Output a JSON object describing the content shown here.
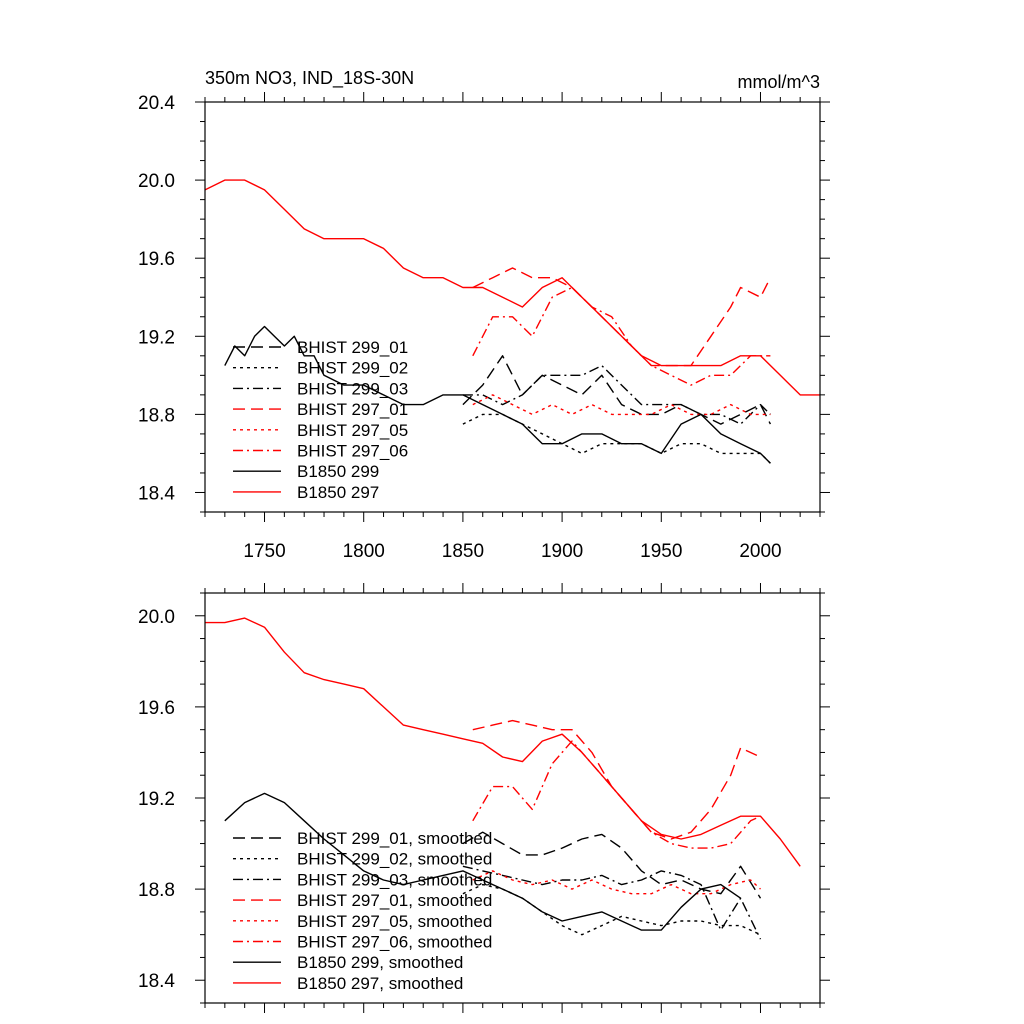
{
  "chart_data": [
    {
      "type": "line",
      "title": "350m NO3, IND_18S-30N",
      "units": "mmol/m^3",
      "xlim": [
        1720,
        2030
      ],
      "ylim": [
        18.3,
        20.4
      ],
      "yticks": [
        18.4,
        18.8,
        19.2,
        19.6,
        20.0,
        20.4
      ],
      "ytick_labels": [
        "18.4",
        "18.8",
        "19.2",
        "19.6",
        "20.0",
        "20.4"
      ],
      "xticks": [
        1750,
        1800,
        1850,
        1900,
        1950,
        2000
      ],
      "xtick_labels": [
        "1750",
        "1800",
        "1850",
        "1900",
        "1950",
        "2000"
      ],
      "legend_position": "left",
      "series": [
        {
          "name": "BHIST 299_01",
          "color": "#000000",
          "dash": "long-dash",
          "x": [
            1850,
            1860,
            1870,
            1880,
            1890,
            1900,
            1910,
            1920,
            1930,
            1940,
            1950,
            1960,
            1970,
            1980,
            1990,
            2000,
            2005
          ],
          "y": [
            18.85,
            18.95,
            19.1,
            18.9,
            19.0,
            18.95,
            18.9,
            19.0,
            18.85,
            18.8,
            18.8,
            18.85,
            18.8,
            18.75,
            18.8,
            18.85,
            18.75
          ]
        },
        {
          "name": "BHIST 299_02",
          "color": "#000000",
          "dash": "dotted",
          "x": [
            1850,
            1860,
            1870,
            1880,
            1890,
            1900,
            1910,
            1920,
            1930,
            1940,
            1950,
            1960,
            1970,
            1980,
            1990,
            2000,
            2005
          ],
          "y": [
            18.75,
            18.8,
            18.8,
            18.75,
            18.7,
            18.65,
            18.6,
            18.65,
            18.65,
            18.65,
            18.6,
            18.65,
            18.65,
            18.6,
            18.6,
            18.6,
            18.55
          ]
        },
        {
          "name": "BHIST 299_03",
          "color": "#000000",
          "dash": "dash-dot",
          "x": [
            1850,
            1860,
            1870,
            1880,
            1890,
            1900,
            1910,
            1920,
            1930,
            1940,
            1950,
            1960,
            1970,
            1980,
            1990,
            2000,
            2005
          ],
          "y": [
            18.9,
            18.9,
            18.85,
            18.9,
            19.0,
            19.0,
            19.0,
            19.05,
            18.95,
            18.85,
            18.85,
            18.85,
            18.8,
            18.8,
            18.75,
            18.85,
            18.8
          ]
        },
        {
          "name": "BHIST 297_01",
          "color": "#ff0000",
          "dash": "long-dash",
          "x": [
            1855,
            1865,
            1875,
            1885,
            1895,
            1905,
            1915,
            1925,
            1935,
            1945,
            1955,
            1965,
            1975,
            1985,
            1990,
            2000,
            2005
          ],
          "y": [
            19.45,
            19.5,
            19.55,
            19.5,
            19.5,
            19.45,
            19.35,
            19.25,
            19.15,
            19.05,
            19.05,
            19.05,
            19.2,
            19.35,
            19.45,
            19.4,
            19.5
          ]
        },
        {
          "name": "BHIST 297_05",
          "color": "#ff0000",
          "dash": "dotted",
          "x": [
            1855,
            1865,
            1875,
            1885,
            1895,
            1905,
            1915,
            1925,
            1935,
            1945,
            1955,
            1965,
            1975,
            1985,
            1995,
            2005
          ],
          "y": [
            18.85,
            18.9,
            18.85,
            18.8,
            18.85,
            18.8,
            18.85,
            18.8,
            18.8,
            18.8,
            18.85,
            18.8,
            18.8,
            18.85,
            18.8,
            18.8
          ]
        },
        {
          "name": "BHIST 297_06",
          "color": "#ff0000",
          "dash": "dash-dot",
          "x": [
            1855,
            1865,
            1875,
            1885,
            1895,
            1905,
            1915,
            1925,
            1935,
            1945,
            1955,
            1965,
            1975,
            1985,
            1995,
            2005
          ],
          "y": [
            19.1,
            19.3,
            19.3,
            19.2,
            19.4,
            19.45,
            19.35,
            19.3,
            19.15,
            19.05,
            19.0,
            18.95,
            19.0,
            19.0,
            19.1,
            19.1
          ]
        },
        {
          "name": "B1850 299",
          "color": "#000000",
          "dash": "solid",
          "x": [
            1730,
            1735,
            1740,
            1745,
            1750,
            1755,
            1760,
            1765,
            1770,
            1775,
            1780,
            1790,
            1800,
            1810,
            1820,
            1830,
            1840,
            1850,
            1860,
            1870,
            1880,
            1890,
            1900,
            1910,
            1920,
            1930,
            1940,
            1950,
            1960,
            1970,
            1980,
            1990,
            2000,
            2005
          ],
          "y": [
            19.05,
            19.15,
            19.1,
            19.2,
            19.25,
            19.2,
            19.15,
            19.2,
            19.1,
            19.1,
            19.0,
            18.95,
            18.95,
            18.9,
            18.85,
            18.85,
            18.9,
            18.9,
            18.85,
            18.8,
            18.75,
            18.65,
            18.65,
            18.7,
            18.7,
            18.65,
            18.65,
            18.6,
            18.75,
            18.8,
            18.7,
            18.65,
            18.6,
            18.55
          ]
        },
        {
          "name": "B1850 297",
          "color": "#ff0000",
          "dash": "solid",
          "x": [
            1720,
            1730,
            1740,
            1750,
            1760,
            1770,
            1780,
            1790,
            1800,
            1810,
            1820,
            1830,
            1840,
            1850,
            1860,
            1870,
            1880,
            1890,
            1900,
            1910,
            1920,
            1930,
            1940,
            1950,
            1960,
            1970,
            1980,
            1990,
            2000,
            2010,
            2020,
            2030
          ],
          "y": [
            19.95,
            20.0,
            20.0,
            19.95,
            19.85,
            19.75,
            19.7,
            19.7,
            19.7,
            19.65,
            19.55,
            19.5,
            19.5,
            19.45,
            19.45,
            19.4,
            19.35,
            19.45,
            19.5,
            19.4,
            19.3,
            19.2,
            19.1,
            19.05,
            19.05,
            19.05,
            19.05,
            19.1,
            19.1,
            19.0,
            18.9,
            18.9
          ]
        }
      ]
    },
    {
      "type": "line",
      "xlim": [
        1720,
        2030
      ],
      "ylim": [
        18.3,
        20.1
      ],
      "yticks": [
        18.4,
        18.8,
        19.2,
        19.6,
        20.0
      ],
      "ytick_labels": [
        "18.4",
        "18.8",
        "19.2",
        "19.6",
        "20.0"
      ],
      "xticks": [
        1750,
        1800,
        1850,
        1900,
        1950,
        2000
      ],
      "legend_position": "left",
      "series": [
        {
          "name": "BHIST 299_01, smoothed",
          "color": "#000000",
          "dash": "long-dash",
          "x": [
            1850,
            1860,
            1870,
            1880,
            1890,
            1900,
            1910,
            1920,
            1930,
            1940,
            1950,
            1960,
            1970,
            1980,
            1990,
            2000
          ],
          "y": [
            19.0,
            19.05,
            19.0,
            18.95,
            18.95,
            18.98,
            19.02,
            19.04,
            18.98,
            18.88,
            18.82,
            18.84,
            18.8,
            18.78,
            18.9,
            18.76
          ]
        },
        {
          "name": "BHIST 299_02, smoothed",
          "color": "#000000",
          "dash": "dotted",
          "x": [
            1850,
            1860,
            1870,
            1880,
            1890,
            1900,
            1910,
            1920,
            1930,
            1940,
            1950,
            1960,
            1970,
            1980,
            1990,
            2000
          ],
          "y": [
            18.78,
            18.82,
            18.8,
            18.76,
            18.7,
            18.64,
            18.6,
            18.64,
            18.68,
            18.66,
            18.64,
            18.66,
            18.66,
            18.64,
            18.64,
            18.6
          ]
        },
        {
          "name": "BHIST 299_03, smoothed",
          "color": "#000000",
          "dash": "dash-dot",
          "x": [
            1850,
            1860,
            1870,
            1880,
            1890,
            1900,
            1910,
            1920,
            1930,
            1940,
            1950,
            1960,
            1970,
            1980,
            1990,
            2000
          ],
          "y": [
            18.9,
            18.88,
            18.86,
            18.84,
            18.82,
            18.84,
            18.84,
            18.86,
            18.82,
            18.84,
            18.88,
            18.86,
            18.82,
            18.62,
            18.76,
            18.58
          ]
        },
        {
          "name": "BHIST 297_01, smoothed",
          "color": "#ff0000",
          "dash": "long-dash",
          "x": [
            1855,
            1865,
            1875,
            1885,
            1895,
            1905,
            1915,
            1925,
            1935,
            1945,
            1955,
            1965,
            1975,
            1985,
            1990,
            2000
          ],
          "y": [
            19.5,
            19.52,
            19.54,
            19.52,
            19.5,
            19.5,
            19.4,
            19.25,
            19.15,
            19.05,
            19.02,
            19.05,
            19.15,
            19.3,
            19.42,
            19.38
          ]
        },
        {
          "name": "BHIST 297_05, smoothed",
          "color": "#ff0000",
          "dash": "dotted",
          "x": [
            1855,
            1865,
            1875,
            1885,
            1895,
            1905,
            1915,
            1925,
            1935,
            1945,
            1955,
            1965,
            1975,
            1985,
            1995,
            2000
          ],
          "y": [
            18.84,
            18.88,
            18.84,
            18.82,
            18.84,
            18.8,
            18.84,
            18.8,
            18.78,
            18.78,
            18.82,
            18.78,
            18.78,
            18.82,
            18.84,
            18.8
          ]
        },
        {
          "name": "BHIST 297_06, smoothed",
          "color": "#ff0000",
          "dash": "dash-dot",
          "x": [
            1855,
            1865,
            1875,
            1885,
            1895,
            1905,
            1915,
            1925,
            1935,
            1945,
            1955,
            1965,
            1975,
            1985,
            1995,
            2000
          ],
          "y": [
            19.1,
            19.25,
            19.25,
            19.15,
            19.35,
            19.45,
            19.35,
            19.25,
            19.15,
            19.05,
            19.0,
            18.98,
            18.98,
            19.0,
            19.1,
            19.12
          ]
        },
        {
          "name": "B1850 299, smoothed",
          "color": "#000000",
          "dash": "solid",
          "x": [
            1730,
            1740,
            1750,
            1760,
            1770,
            1780,
            1790,
            1800,
            1810,
            1820,
            1830,
            1840,
            1850,
            1860,
            1870,
            1880,
            1890,
            1900,
            1910,
            1920,
            1930,
            1940,
            1950,
            1960,
            1970,
            1980,
            1990
          ],
          "y": [
            19.1,
            19.18,
            19.22,
            19.18,
            19.1,
            19.02,
            18.95,
            18.88,
            18.84,
            18.82,
            18.84,
            18.86,
            18.88,
            18.84,
            18.8,
            18.76,
            18.7,
            18.66,
            18.68,
            18.7,
            18.66,
            18.62,
            18.62,
            18.72,
            18.8,
            18.82,
            18.76
          ]
        },
        {
          "name": "B1850 297, smoothed",
          "color": "#ff0000",
          "dash": "solid",
          "x": [
            1720,
            1730,
            1740,
            1750,
            1760,
            1770,
            1780,
            1790,
            1800,
            1810,
            1820,
            1830,
            1840,
            1850,
            1860,
            1870,
            1880,
            1890,
            1900,
            1910,
            1920,
            1930,
            1940,
            1950,
            1960,
            1970,
            1980,
            1990,
            2000,
            2010,
            2020
          ],
          "y": [
            19.97,
            19.97,
            19.99,
            19.95,
            19.84,
            19.75,
            19.72,
            19.7,
            19.68,
            19.6,
            19.52,
            19.5,
            19.48,
            19.46,
            19.44,
            19.38,
            19.36,
            19.45,
            19.48,
            19.4,
            19.3,
            19.2,
            19.1,
            19.04,
            19.02,
            19.04,
            19.08,
            19.12,
            19.12,
            19.02,
            18.9
          ]
        }
      ]
    }
  ]
}
